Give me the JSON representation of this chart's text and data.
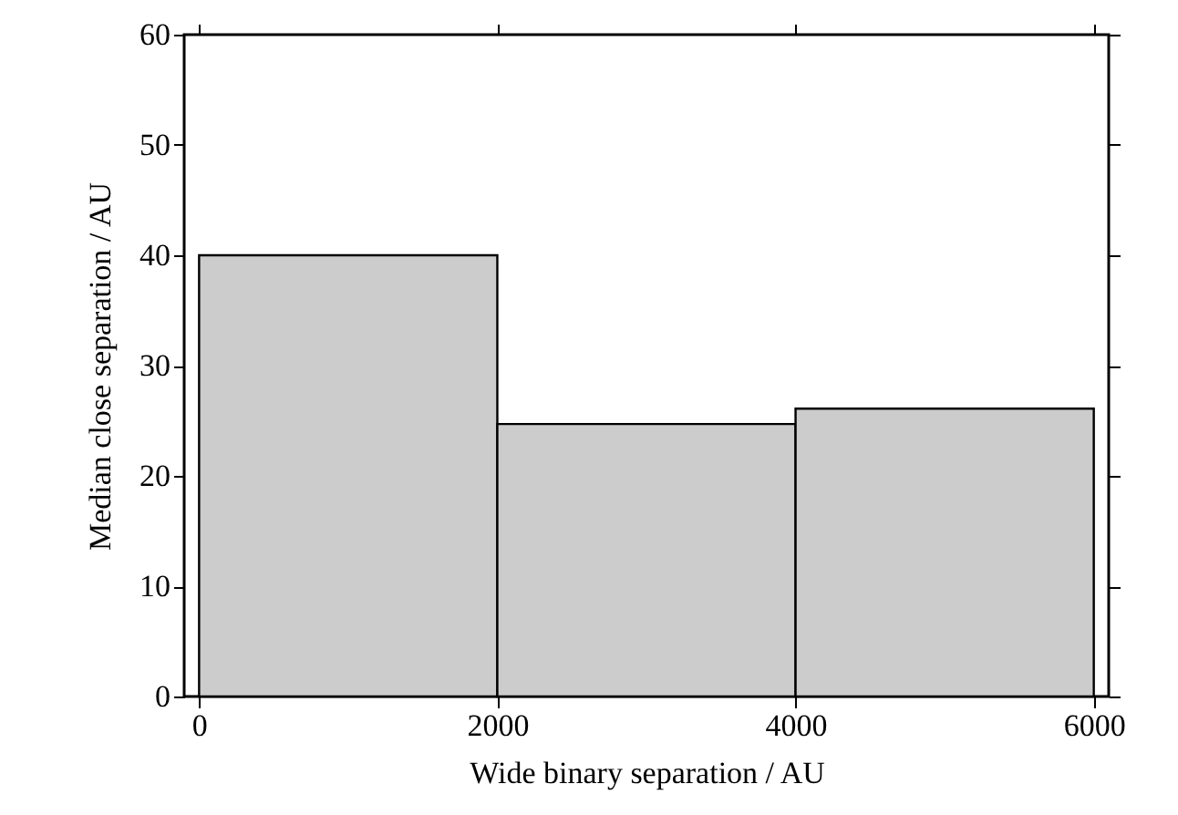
{
  "chart_data": {
    "type": "histogram",
    "xlabel": "Wide binary separation / AU",
    "ylabel": "Median close separation / AU",
    "bins": [
      0,
      2000,
      4000,
      6000
    ],
    "values": [
      40,
      24.7,
      26.1
    ],
    "color": "#cccccc",
    "xlim": [
      -100,
      6100
    ],
    "xticks": [
      0,
      2000,
      4000,
      6000
    ],
    "ylim": [
      0,
      60
    ],
    "yticks": [
      0,
      10,
      20,
      30,
      40,
      50,
      60
    ],
    "grid": false
  }
}
